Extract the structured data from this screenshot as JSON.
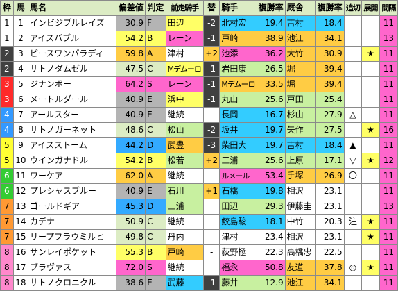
{
  "colors": {
    "waku": {
      "1": "#ffffff",
      "2": "#404040",
      "3": "#ff2a2a",
      "4": "#3399ff",
      "5": "#ffff33",
      "6": "#33cc33",
      "7": "#ff9933",
      "8": "#ff88cc"
    },
    "header_bg": "#dcecc4",
    "rank_A": "#ffcc44",
    "rank_B": "#ffff66",
    "rank_C": "#dcecc4",
    "rank_D": "#33aaff",
    "rank_E": "#b4b4b4",
    "rank_F": "#b4b4b4",
    "rank_S": "#ff66cc",
    "rate_green": "#c8dcb0",
    "rate_pink": "#ff66cc",
    "rate_yellow": "#ffff66",
    "rate_cyan": "#00ccff",
    "rate_orange": "#ffcc44",
    "rate_blue": "#33aaff",
    "prev_jockey_green": "#c8f0a0",
    "prev_jockey_cyan": "#33ccff",
    "prev_jockey_pink": "#ff66cc",
    "prev_jockey_yellow": "#ffff66",
    "prev_jockey_orange": "#ffcc44",
    "change_plus": "#ffcc44",
    "change_minus": "#404040",
    "jockey_yellow": "#ffff66",
    "jockey_cyan": "#33ccff",
    "jockey_pink": "#ff66cc",
    "jockey_orange": "#ffcc44",
    "jockey_green": "#c8f0a0",
    "trainer_orange": "#ffcc44",
    "trainer_cyan": "#33ccff",
    "trainer_green": "#c8f0a0",
    "trainer_yellow": "#ffff66",
    "trainer_pink": "#ff66cc",
    "pop_bg": "#ff66cc",
    "sort_bg": "#dcecc4"
  },
  "headers": [
    "枠",
    "馬",
    "馬名",
    "偏差値",
    "判定",
    "前走騎手",
    "替",
    "騎手",
    "複勝率",
    "厩舎",
    "複勝率",
    "追切",
    "展開",
    "間隔"
  ],
  "rows": [
    {
      "waku": "1",
      "uma": "1",
      "name": "インビジブルレイズ",
      "dev": "30.9",
      "rank": "F",
      "prev": "田辺",
      "prevc": "prev_jockey_yellow",
      "chg": "-2",
      "chgc": "change_minus",
      "jockey": "北村宏",
      "jc": "jockey_cyan",
      "jrate": "19.4",
      "trainer": "吉村",
      "tc": "trainer_cyan",
      "trate": "18.4",
      "oikiri": "",
      "tenkai": "",
      "interval": "11"
    },
    {
      "waku": "1",
      "uma": "2",
      "name": "アイスバブル",
      "dev": "54.2",
      "rank": "B",
      "prev": "レーン",
      "prevc": "prev_jockey_pink",
      "chg": "-1",
      "chgc": "change_minus",
      "jockey": "戸崎",
      "jc": "jockey_orange",
      "jrate": "38.9",
      "trainer": "池江",
      "tc": "trainer_orange",
      "trate": "34.1",
      "oikiri": "",
      "tenkai": "",
      "interval": "13"
    },
    {
      "waku": "2",
      "uma": "3",
      "name": "ピースワンパラディ",
      "dev": "59.8",
      "rank": "A",
      "prev": "津村",
      "prevc": "",
      "chg": "+2",
      "chgc": "change_plus",
      "jockey": "池添",
      "jc": "jockey_pink",
      "jrate": "36.2",
      "trainer": "大竹",
      "tc": "trainer_orange",
      "trate": "30.9",
      "oikiri": "",
      "tenkai": "★",
      "interval": "11"
    },
    {
      "waku": "2",
      "uma": "4",
      "name": "サトノダムゼル",
      "dev": "47.5",
      "rank": "C",
      "prev": "Mデムーロ",
      "prevc": "prev_jockey_yellow",
      "chg": "-1",
      "chgc": "change_minus",
      "jockey": "岩田康",
      "jc": "jockey_green",
      "jrate": "26.5",
      "trainer": "堀",
      "tc": "trainer_orange",
      "trate": "39.4",
      "oikiri": "",
      "tenkai": "",
      "interval": "11"
    },
    {
      "waku": "3",
      "uma": "5",
      "name": "ジナンボー",
      "dev": "64.2",
      "rank": "S",
      "prev": "レーン",
      "prevc": "prev_jockey_pink",
      "chg": "-1",
      "chgc": "change_minus",
      "jockey": "Mデムーロ",
      "jc": "jockey_orange",
      "jrate": "33.5",
      "trainer": "堀",
      "tc": "trainer_orange",
      "trate": "39.4",
      "oikiri": "",
      "tenkai": "",
      "interval": "11"
    },
    {
      "waku": "3",
      "uma": "6",
      "name": "メートルダール",
      "dev": "40.9",
      "rank": "E",
      "prev": "浜中",
      "prevc": "prev_jockey_yellow",
      "chg": "-1",
      "chgc": "change_minus",
      "jockey": "丸山",
      "jc": "jockey_green",
      "jrate": "25.6",
      "trainer": "戸田",
      "tc": "trainer_green",
      "trate": "25.4",
      "oikiri": "",
      "tenkai": "",
      "interval": "11"
    },
    {
      "waku": "4",
      "uma": "7",
      "name": "アールスター",
      "dev": "40.9",
      "rank": "E",
      "prev": "継続",
      "prevc": "",
      "chg": "",
      "chgc": "",
      "jockey": "長岡",
      "jc": "jockey_cyan",
      "jrate": "16.7",
      "trainer": "杉山",
      "tc": "trainer_green",
      "trate": "27.9",
      "oikiri": "△",
      "tenkai": "",
      "interval": "11"
    },
    {
      "waku": "4",
      "uma": "8",
      "name": "サトノガーネット",
      "dev": "48.6",
      "rank": "C",
      "prev": "松山",
      "prevc": "prev_jockey_green",
      "chg": "-2",
      "chgc": "change_minus",
      "jockey": "坂井",
      "jc": "jockey_cyan",
      "jrate": "19.7",
      "trainer": "矢作",
      "tc": "trainer_green",
      "trate": "27.5",
      "oikiri": "",
      "tenkai": "★",
      "interval": "16"
    },
    {
      "waku": "5",
      "uma": "9",
      "name": "アイスストーム",
      "dev": "44.2",
      "rank": "D",
      "prev": "武豊",
      "prevc": "prev_jockey_orange",
      "chg": "-3",
      "chgc": "change_minus",
      "jockey": "柴田大",
      "jc": "jockey_cyan",
      "jrate": "19.7",
      "trainer": "吉村",
      "tc": "trainer_cyan",
      "trate": "18.4",
      "oikiri": "▲",
      "tenkai": "",
      "interval": "11"
    },
    {
      "waku": "5",
      "uma": "10",
      "name": "ウインガナドル",
      "dev": "54.2",
      "rank": "B",
      "prev": "松若",
      "prevc": "prev_jockey_green",
      "chg": "+2",
      "chgc": "change_plus",
      "jockey": "三浦",
      "jc": "jockey_green",
      "jrate": "25.6",
      "trainer": "上原",
      "tc": "trainer_green",
      "trate": "17.1",
      "oikiri": "▽",
      "tenkai": "★",
      "interval": "12"
    },
    {
      "waku": "6",
      "uma": "11",
      "name": "ワーケア",
      "dev": "62.0",
      "rank": "A",
      "prev": "継続",
      "prevc": "",
      "chg": "",
      "chgc": "",
      "jockey": "ルメール",
      "jc": "jockey_pink",
      "jrate": "53.4",
      "trainer": "手塚",
      "tc": "trainer_orange",
      "trate": "26.9",
      "oikiri": "〇",
      "tenkai": "",
      "interval": "11"
    },
    {
      "waku": "6",
      "uma": "12",
      "name": "プレシャスブルー",
      "dev": "40.9",
      "rank": "E",
      "prev": "石川",
      "prevc": "prev_jockey_green",
      "chg": "+1",
      "chgc": "change_plus",
      "jockey": "石橋",
      "jc": "jockey_cyan",
      "jrate": "19.8",
      "trainer": "相沢",
      "tc": "",
      "trate": "23.1",
      "oikiri": "",
      "tenkai": "",
      "interval": "11"
    },
    {
      "waku": "7",
      "uma": "13",
      "name": "ゴールドギア",
      "dev": "45.3",
      "rank": "D",
      "prev": "三浦",
      "prevc": "prev_jockey_green",
      "chg": "",
      "chgc": "",
      "jockey": "田辺",
      "jc": "jockey_green",
      "jrate": "29.3",
      "trainer": "伊藤圭",
      "tc": "",
      "trate": "23.1",
      "oikiri": "",
      "tenkai": "",
      "interval": "13"
    },
    {
      "waku": "7",
      "uma": "14",
      "name": "カデナ",
      "dev": "50.9",
      "rank": "C",
      "prev": "継続",
      "prevc": "",
      "chg": "",
      "chgc": "",
      "jockey": "鮫島駿",
      "jc": "jockey_cyan",
      "jrate": "18.1",
      "trainer": "中竹",
      "tc": "",
      "trate": "20.3",
      "oikiri": "注",
      "tenkai": "★",
      "interval": "11"
    },
    {
      "waku": "7",
      "uma": "15",
      "name": "リープフラウミルヒ",
      "dev": "49.8",
      "rank": "C",
      "prev": "丹内",
      "prevc": "",
      "chg": "-",
      "chgc": "",
      "jockey": "津村",
      "jc": "",
      "jrate": "23.4",
      "trainer": "相沢",
      "tc": "",
      "trate": "23.1",
      "oikiri": "",
      "tenkai": "★",
      "interval": "11"
    },
    {
      "waku": "8",
      "uma": "16",
      "name": "サンレイポケット",
      "dev": "55.3",
      "rank": "B",
      "prev": "戸崎",
      "prevc": "prev_jockey_orange",
      "chg": "-",
      "chgc": "",
      "jockey": "荻野極",
      "jc": "",
      "jrate": "22.3",
      "trainer": "高橋忠",
      "tc": "",
      "trate": "22.5",
      "oikiri": "",
      "tenkai": "",
      "interval": "11"
    },
    {
      "waku": "8",
      "uma": "17",
      "name": "ブラヴァス",
      "dev": "72.0",
      "rank": "S",
      "prev": "継続",
      "prevc": "",
      "chg": "",
      "chgc": "",
      "jockey": "福永",
      "jc": "jockey_pink",
      "jrate": "50.8",
      "trainer": "友道",
      "tc": "trainer_orange",
      "trate": "37.8",
      "oikiri": "◎",
      "tenkai": "★",
      "interval": "11"
    },
    {
      "waku": "8",
      "uma": "18",
      "name": "サトノクロニクル",
      "dev": "38.6",
      "rank": "E",
      "prev": "武藤",
      "prevc": "prev_jockey_cyan",
      "chg": "-1",
      "chgc": "change_minus",
      "jockey": "藤井",
      "jc": "jockey_green",
      "jrate": "12.9",
      "trainer": "池江",
      "tc": "trainer_orange",
      "trate": "34.1",
      "oikiri": "",
      "tenkai": "",
      "interval": "11"
    }
  ]
}
